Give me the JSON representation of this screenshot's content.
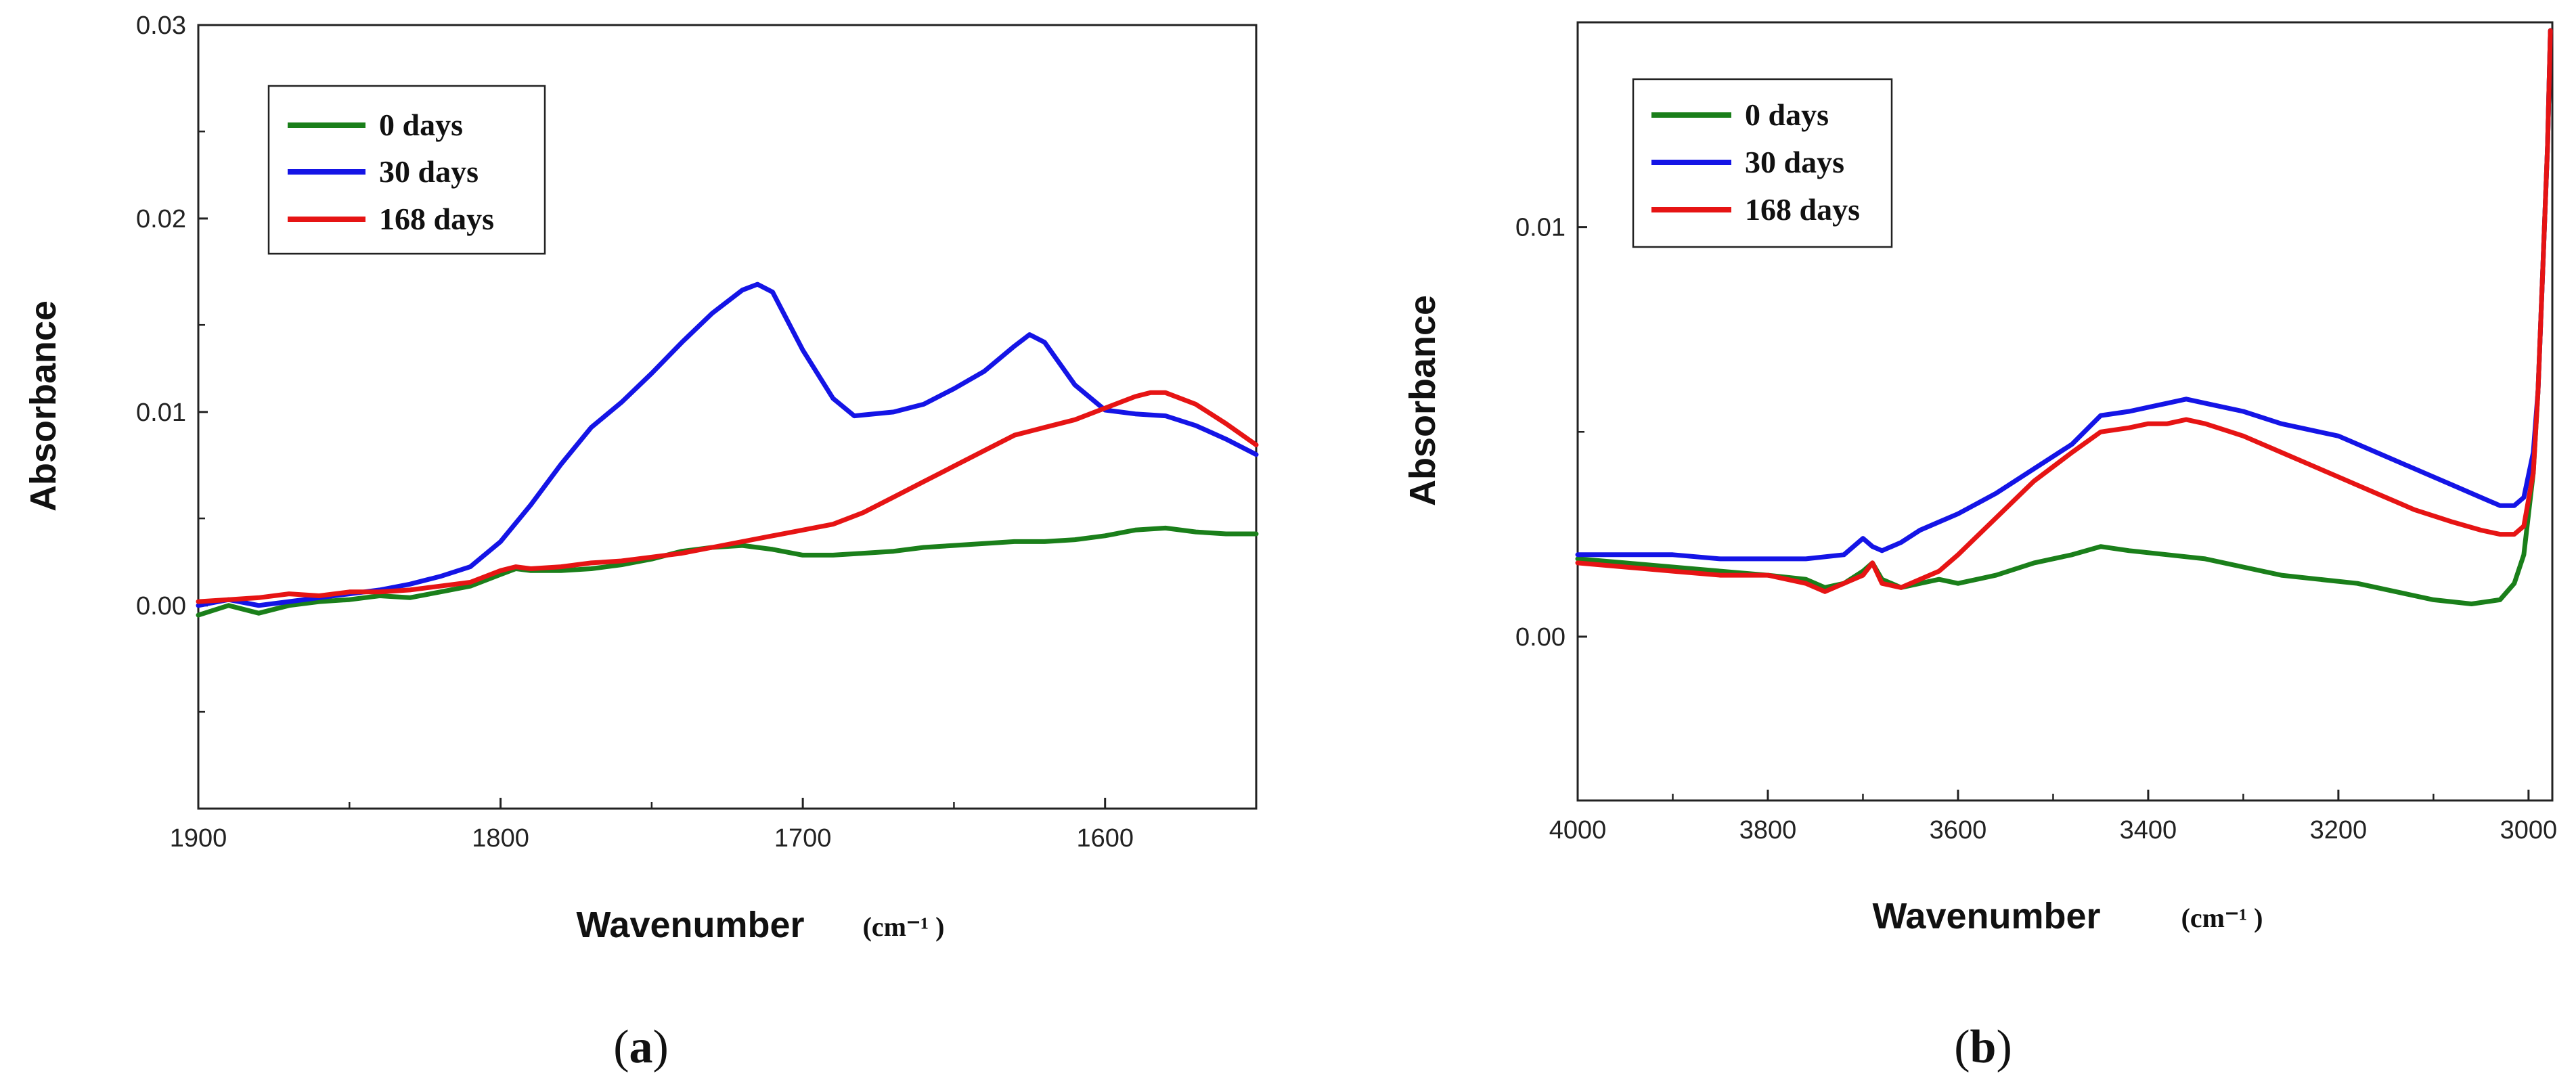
{
  "chart_data": [
    {
      "panel": "a",
      "type": "line",
      "xlabel": "Wavenumber",
      "xunit": "(cm⁻¹ )",
      "ylabel": "Absorbance",
      "xlim": [
        1900,
        1550
      ],
      "ylim": [
        -0.0105,
        0.03
      ],
      "xticks": [
        1900,
        1800,
        1700,
        1600
      ],
      "yticks": [
        0.0,
        0.01,
        0.02,
        0.03
      ],
      "ytick_labels": [
        "0.00",
        "0.01",
        "0.02",
        "0.03"
      ],
      "y_minor_ticks": [
        -0.0055,
        0.0045,
        0.0145,
        0.0245
      ],
      "legend": {
        "location": "top-left"
      },
      "series": [
        {
          "name": "0 days",
          "color": "#1a7f1a",
          "x": [
            1900,
            1890,
            1880,
            1870,
            1860,
            1850,
            1840,
            1830,
            1820,
            1810,
            1800,
            1795,
            1790,
            1780,
            1770,
            1760,
            1750,
            1740,
            1730,
            1720,
            1710,
            1700,
            1690,
            1680,
            1670,
            1660,
            1650,
            1640,
            1630,
            1620,
            1610,
            1600,
            1590,
            1580,
            1570,
            1560,
            1550
          ],
          "y": [
            -0.0005,
            0.0,
            -0.0004,
            0.0,
            0.0002,
            0.0003,
            0.0005,
            0.0004,
            0.0007,
            0.001,
            0.0016,
            0.0019,
            0.0018,
            0.0018,
            0.0019,
            0.0021,
            0.0024,
            0.0028,
            0.003,
            0.0031,
            0.0029,
            0.0026,
            0.0026,
            0.0027,
            0.0028,
            0.003,
            0.0031,
            0.0032,
            0.0033,
            0.0033,
            0.0034,
            0.0036,
            0.0039,
            0.004,
            0.0038,
            0.0037,
            0.0037
          ]
        },
        {
          "name": "30 days",
          "color": "#1414e6",
          "x": [
            1900,
            1890,
            1880,
            1870,
            1860,
            1850,
            1840,
            1830,
            1820,
            1810,
            1800,
            1790,
            1780,
            1770,
            1760,
            1750,
            1740,
            1730,
            1720,
            1715,
            1710,
            1700,
            1690,
            1683,
            1670,
            1660,
            1650,
            1640,
            1630,
            1625,
            1620,
            1610,
            1600,
            1590,
            1580,
            1570,
            1560,
            1550
          ],
          "y": [
            0.0,
            0.0003,
            0.0,
            0.0002,
            0.0004,
            0.0006,
            0.0008,
            0.0011,
            0.0015,
            0.002,
            0.0033,
            0.0052,
            0.0073,
            0.0092,
            0.0105,
            0.012,
            0.0136,
            0.0151,
            0.0163,
            0.0166,
            0.0162,
            0.0132,
            0.0107,
            0.0098,
            0.01,
            0.0104,
            0.0112,
            0.0121,
            0.0134,
            0.014,
            0.0136,
            0.0114,
            0.0101,
            0.0099,
            0.0098,
            0.0093,
            0.0086,
            0.0078
          ]
        },
        {
          "name": "168 days",
          "color": "#e61414",
          "x": [
            1900,
            1890,
            1880,
            1870,
            1860,
            1850,
            1840,
            1830,
            1820,
            1810,
            1800,
            1795,
            1790,
            1780,
            1770,
            1760,
            1750,
            1740,
            1730,
            1720,
            1710,
            1700,
            1690,
            1680,
            1670,
            1660,
            1650,
            1640,
            1630,
            1620,
            1610,
            1600,
            1590,
            1585,
            1580,
            1570,
            1560,
            1550
          ],
          "y": [
            0.0002,
            0.0003,
            0.0004,
            0.0006,
            0.0005,
            0.0007,
            0.0007,
            0.0008,
            0.001,
            0.0012,
            0.0018,
            0.002,
            0.0019,
            0.002,
            0.0022,
            0.0023,
            0.0025,
            0.0027,
            0.003,
            0.0033,
            0.0036,
            0.0039,
            0.0042,
            0.0048,
            0.0056,
            0.0064,
            0.0072,
            0.008,
            0.0088,
            0.0092,
            0.0096,
            0.0102,
            0.0108,
            0.011,
            0.011,
            0.0104,
            0.0094,
            0.0083
          ]
        }
      ]
    },
    {
      "panel": "b",
      "type": "line",
      "xlabel": "Wavenumber",
      "xunit": "(cm⁻¹ )",
      "ylabel": "Absorbance",
      "xlim": [
        4000,
        2975
      ],
      "ylim": [
        -0.004,
        0.015
      ],
      "xticks": [
        4000,
        3800,
        3600,
        3400,
        3200,
        3000
      ],
      "yticks": [
        0.0,
        0.01
      ],
      "ytick_labels": [
        "0.00",
        "0.01"
      ],
      "y_minor_ticks": [
        0.005,
        0.015
      ],
      "legend": {
        "location": "top-left"
      },
      "series": [
        {
          "name": "0 days",
          "color": "#1a7f1a",
          "x": [
            4000,
            3950,
            3900,
            3850,
            3800,
            3760,
            3740,
            3720,
            3700,
            3690,
            3680,
            3660,
            3640,
            3620,
            3600,
            3560,
            3520,
            3480,
            3450,
            3420,
            3380,
            3340,
            3300,
            3260,
            3220,
            3180,
            3140,
            3100,
            3060,
            3030,
            3015,
            3005,
            2995,
            2990,
            2985,
            2980,
            2977
          ],
          "y": [
            0.0019,
            0.0018,
            0.0017,
            0.0016,
            0.0015,
            0.0014,
            0.0012,
            0.0013,
            0.0016,
            0.0018,
            0.0014,
            0.0012,
            0.0013,
            0.0014,
            0.0013,
            0.0015,
            0.0018,
            0.002,
            0.0022,
            0.0021,
            0.002,
            0.0019,
            0.0017,
            0.0015,
            0.0014,
            0.0013,
            0.0011,
            0.0009,
            0.0008,
            0.0009,
            0.0013,
            0.002,
            0.004,
            0.006,
            0.009,
            0.012,
            0.0148
          ]
        },
        {
          "name": "30 days",
          "color": "#1414e6",
          "x": [
            4000,
            3950,
            3900,
            3850,
            3800,
            3760,
            3720,
            3700,
            3690,
            3680,
            3660,
            3640,
            3620,
            3600,
            3560,
            3520,
            3480,
            3450,
            3420,
            3400,
            3380,
            3360,
            3340,
            3300,
            3260,
            3220,
            3200,
            3160,
            3120,
            3080,
            3050,
            3030,
            3015,
            3005,
            2995,
            2990,
            2985,
            2980,
            2977
          ],
          "y": [
            0.002,
            0.002,
            0.002,
            0.0019,
            0.0019,
            0.0019,
            0.002,
            0.0024,
            0.0022,
            0.0021,
            0.0023,
            0.0026,
            0.0028,
            0.003,
            0.0035,
            0.0041,
            0.0047,
            0.0054,
            0.0055,
            0.0056,
            0.0057,
            0.0058,
            0.0057,
            0.0055,
            0.0052,
            0.005,
            0.0049,
            0.0045,
            0.0041,
            0.0037,
            0.0034,
            0.0032,
            0.0032,
            0.0034,
            0.0045,
            0.006,
            0.009,
            0.012,
            0.0148
          ]
        },
        {
          "name": "168 days",
          "color": "#e61414",
          "x": [
            4000,
            3950,
            3900,
            3850,
            3800,
            3760,
            3740,
            3720,
            3700,
            3690,
            3680,
            3660,
            3640,
            3620,
            3600,
            3560,
            3520,
            3480,
            3450,
            3420,
            3400,
            3380,
            3360,
            3340,
            3300,
            3260,
            3220,
            3200,
            3160,
            3120,
            3080,
            3050,
            3030,
            3015,
            3005,
            2995,
            2990,
            2985,
            2980,
            2977
          ],
          "y": [
            0.0018,
            0.0017,
            0.0016,
            0.0015,
            0.0015,
            0.0013,
            0.0011,
            0.0013,
            0.0015,
            0.0018,
            0.0013,
            0.0012,
            0.0014,
            0.0016,
            0.002,
            0.0029,
            0.0038,
            0.0045,
            0.005,
            0.0051,
            0.0052,
            0.0052,
            0.0053,
            0.0052,
            0.0049,
            0.0045,
            0.0041,
            0.0039,
            0.0035,
            0.0031,
            0.0028,
            0.0026,
            0.0025,
            0.0025,
            0.0027,
            0.004,
            0.006,
            0.009,
            0.012,
            0.0148
          ]
        }
      ]
    }
  ],
  "panels": [
    {
      "label_open": "(",
      "label_letter": "a",
      "label_close": ")"
    },
    {
      "label_open": "(",
      "label_letter": "b",
      "label_close": ")"
    }
  ]
}
